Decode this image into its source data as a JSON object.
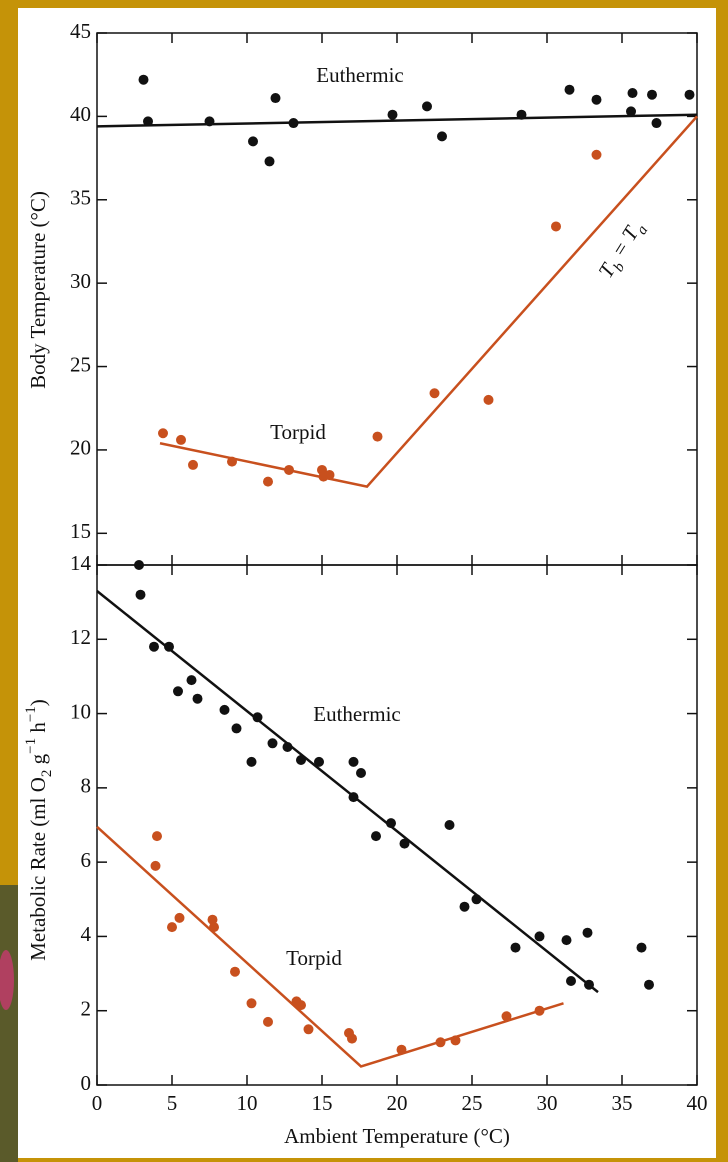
{
  "chart_data": [
    {
      "type": "scatter",
      "ylabel": [
        {
          "text": "Body Temperature (°C)"
        }
      ],
      "xlim": [
        0,
        40
      ],
      "xticks": [
        0,
        5,
        10,
        15,
        20,
        25,
        30,
        35,
        40
      ],
      "xtick_labels": false,
      "ylim": [
        13.1,
        45
      ],
      "yticks": [
        15,
        20,
        25,
        30,
        35,
        40,
        45
      ],
      "series": [
        {
          "name": "Euthermic",
          "color": "#111111",
          "x": [
            3.1,
            3.4,
            7.5,
            10.4,
            11.5,
            11.9,
            13.1,
            19.7,
            22.0,
            23.0,
            28.3,
            31.5,
            33.3,
            35.7,
            35.6,
            37.0,
            37.3,
            39.5
          ],
          "values": [
            42.2,
            39.7,
            39.7,
            38.5,
            37.3,
            41.1,
            39.6,
            40.1,
            40.6,
            38.8,
            40.1,
            41.6,
            41.0,
            41.4,
            40.3,
            41.3,
            39.6,
            41.3
          ],
          "fit_x": [
            0,
            40
          ],
          "fit_values": [
            39.4,
            40.1
          ]
        },
        {
          "name": "Torpid",
          "color": "#c8501e",
          "x": [
            4.4,
            5.6,
            6.4,
            9.0,
            11.4,
            12.8,
            15.0,
            15.1,
            15.5,
            18.7,
            22.5,
            26.1,
            30.6,
            33.3
          ],
          "values": [
            21.0,
            20.6,
            19.1,
            19.3,
            18.1,
            18.8,
            18.8,
            18.4,
            18.5,
            20.8,
            23.4,
            23.0,
            33.4,
            37.7
          ],
          "fit_x": [
            4.2,
            18.0,
            40
          ],
          "fit_values": [
            20.4,
            17.8,
            40.0
          ]
        }
      ],
      "annotation": [
        {
          "text": "T"
        },
        {
          "text": "b",
          "shift": "sub"
        },
        {
          "text": " = "
        },
        {
          "text": "T"
        },
        {
          "text": "a",
          "shift": "sub"
        }
      ]
    },
    {
      "type": "scatter",
      "xlabel": "Ambient Temperature (°C)",
      "ylabel": [
        {
          "text": "Metabolic Rate (ml O"
        },
        {
          "text": "2",
          "shift": "sub"
        },
        {
          "text": " g"
        },
        {
          "text": "−1",
          "shift": "sup"
        },
        {
          "text": " h"
        },
        {
          "text": "−1",
          "shift": "sup"
        },
        {
          "text": ")"
        }
      ],
      "xlim": [
        0,
        40
      ],
      "xticks": [
        0,
        5,
        10,
        15,
        20,
        25,
        30,
        35,
        40
      ],
      "xtick_labels": true,
      "ylim": [
        0,
        14
      ],
      "yticks": [
        0,
        2,
        4,
        6,
        8,
        10,
        12,
        14
      ],
      "series": [
        {
          "name": "Euthermic",
          "color": "#111111",
          "x": [
            2.8,
            2.9,
            3.8,
            4.8,
            5.4,
            6.3,
            6.7,
            8.5,
            9.3,
            10.3,
            10.7,
            11.7,
            12.7,
            13.6,
            14.8,
            17.1,
            17.6,
            17.1,
            18.6,
            19.6,
            20.5,
            23.5,
            24.5,
            25.3,
            27.9,
            29.5,
            31.3,
            31.6,
            32.7,
            32.8,
            36.3,
            36.8
          ],
          "values": [
            14.0,
            13.2,
            11.8,
            11.8,
            10.6,
            10.9,
            10.4,
            10.1,
            9.6,
            8.7,
            9.9,
            9.2,
            9.1,
            8.75,
            8.7,
            8.7,
            8.4,
            7.75,
            6.7,
            7.05,
            6.5,
            7.0,
            4.8,
            5.0,
            3.7,
            4.0,
            3.9,
            2.8,
            4.1,
            2.7,
            3.7,
            2.7
          ],
          "fit_x": [
            0,
            33.4
          ],
          "fit_values": [
            13.3,
            2.5
          ]
        },
        {
          "name": "Torpid",
          "color": "#c8501e",
          "x": [
            4.0,
            3.9,
            5.0,
            5.5,
            7.7,
            7.8,
            9.2,
            10.3,
            11.4,
            13.3,
            13.6,
            14.1,
            16.8,
            17.0,
            20.3,
            22.9,
            23.9,
            27.3,
            29.5
          ],
          "values": [
            6.7,
            5.9,
            4.25,
            4.5,
            4.45,
            4.25,
            3.05,
            2.2,
            1.7,
            2.25,
            2.15,
            1.5,
            1.4,
            1.25,
            0.95,
            1.15,
            1.2,
            1.85,
            2.0
          ],
          "fit_x": [
            0,
            17.6,
            31.1
          ],
          "fit_values": [
            6.95,
            0.5,
            2.2
          ]
        }
      ]
    }
  ]
}
